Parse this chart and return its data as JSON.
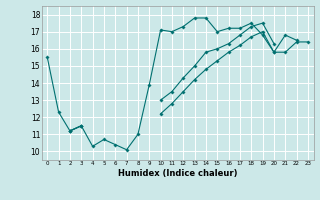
{
  "title": "",
  "xlabel": "Humidex (Indice chaleur)",
  "ylabel": "",
  "background_color": "#cce8e8",
  "grid_color": "#ffffff",
  "line_color": "#007070",
  "xlim": [
    -0.5,
    23.5
  ],
  "ylim": [
    9.5,
    18.5
  ],
  "yticks": [
    10,
    11,
    12,
    13,
    14,
    15,
    16,
    17,
    18
  ],
  "xticks": [
    0,
    1,
    2,
    3,
    4,
    5,
    6,
    7,
    8,
    9,
    10,
    11,
    12,
    13,
    14,
    15,
    16,
    17,
    18,
    19,
    20,
    21,
    22,
    23
  ],
  "series": [
    [
      15.5,
      12.3,
      11.2,
      11.5,
      10.3,
      10.7,
      10.4,
      10.1,
      11.0,
      13.9,
      17.1,
      17.0,
      17.3,
      17.8,
      17.8,
      17.0,
      17.2,
      17.2,
      17.5,
      16.8,
      15.8,
      16.8,
      16.5,
      null
    ],
    [
      null,
      null,
      11.2,
      11.5,
      null,
      null,
      null,
      null,
      null,
      null,
      13.0,
      13.5,
      14.3,
      15.0,
      15.8,
      16.0,
      16.3,
      16.8,
      17.3,
      17.5,
      16.3,
      null,
      null,
      null
    ],
    [
      null,
      null,
      11.2,
      11.5,
      null,
      null,
      null,
      null,
      null,
      null,
      12.2,
      12.8,
      13.5,
      14.2,
      14.8,
      15.3,
      15.8,
      16.2,
      16.7,
      17.0,
      15.8,
      15.8,
      16.4,
      16.4
    ]
  ]
}
